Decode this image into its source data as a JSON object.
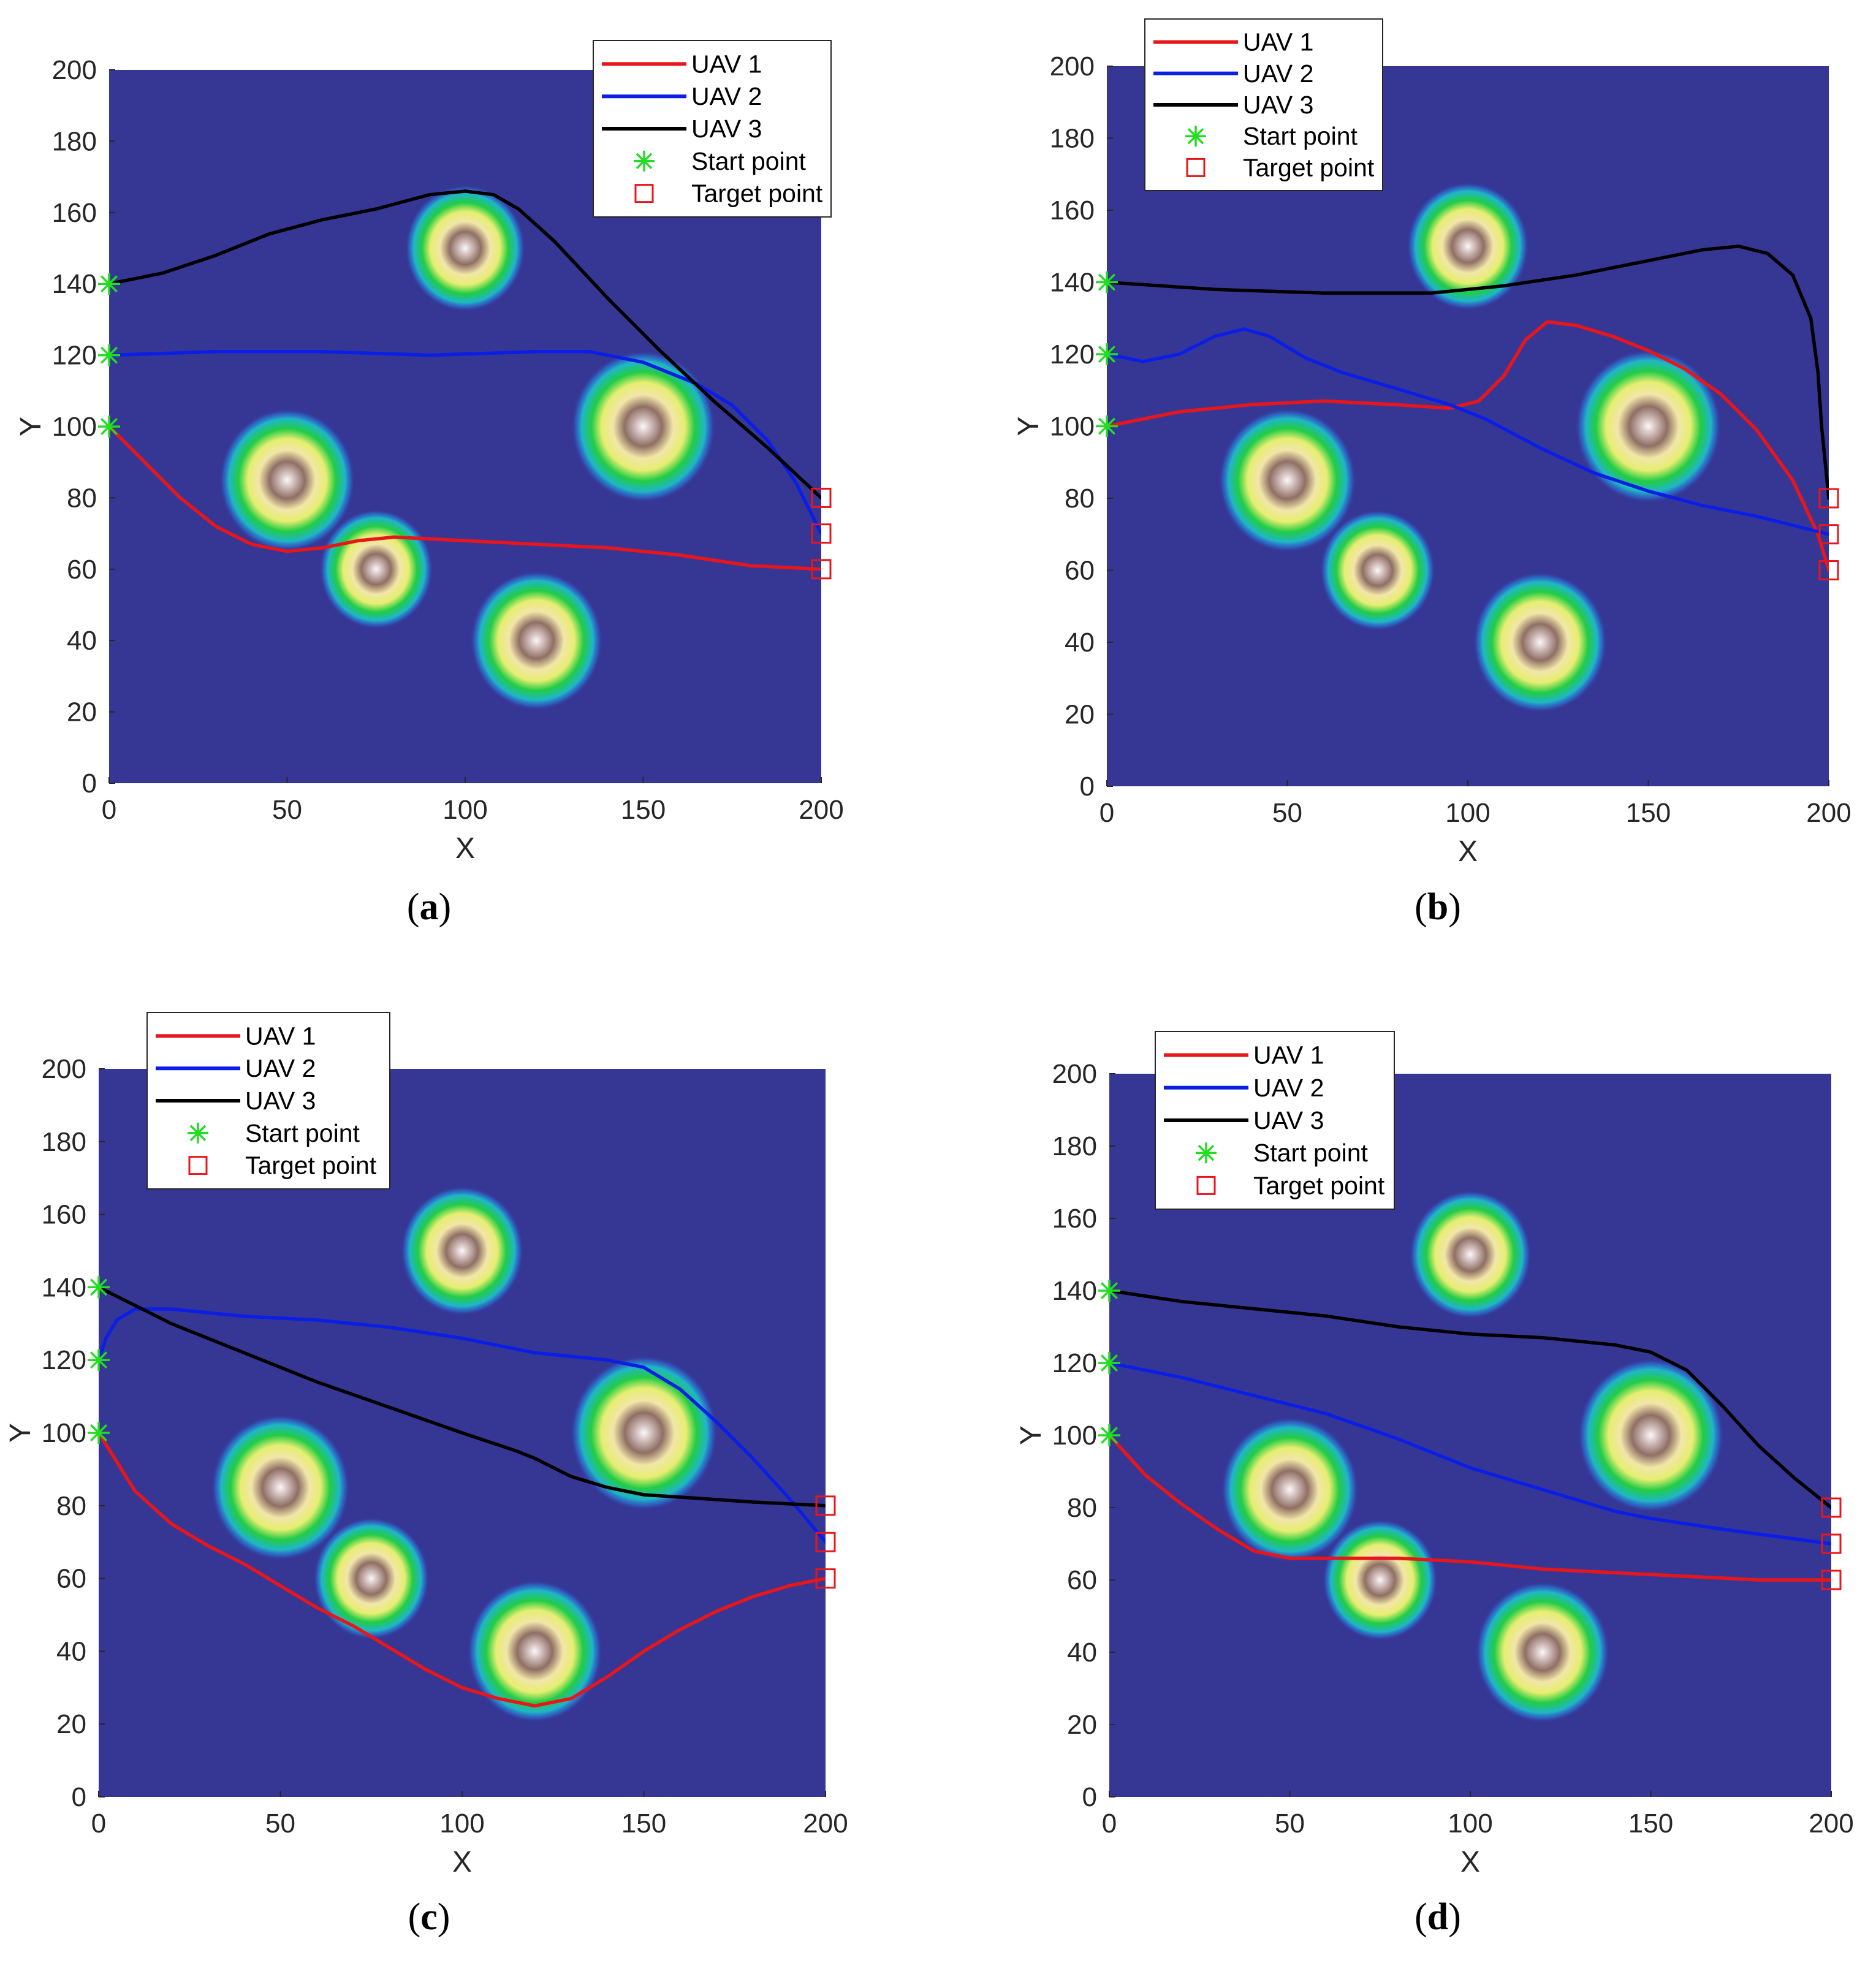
{
  "chart_data": [
    {
      "panel": "a",
      "type": "line",
      "caption_letter": "a",
      "xlabel": "X",
      "ylabel": "Y",
      "xlim": [
        0,
        200
      ],
      "ylim": [
        0,
        200
      ],
      "xticks": [
        0,
        50,
        100,
        150,
        200
      ],
      "yticks": [
        0,
        20,
        40,
        60,
        80,
        100,
        120,
        140,
        160,
        180,
        200
      ],
      "legend_position": "top-right",
      "series": [
        {
          "name": "UAV 1",
          "color": "#e8161b",
          "points": [
            [
              0,
              100
            ],
            [
              10,
              90
            ],
            [
              20,
              80
            ],
            [
              30,
              72
            ],
            [
              40,
              67
            ],
            [
              50,
              65
            ],
            [
              60,
              66
            ],
            [
              70,
              68
            ],
            [
              80,
              69
            ],
            [
              100,
              68
            ],
            [
              120,
              67
            ],
            [
              140,
              66
            ],
            [
              160,
              64
            ],
            [
              180,
              61
            ],
            [
              200,
              60
            ]
          ]
        },
        {
          "name": "UAV 2",
          "color": "#0a1ee6",
          "points": [
            [
              0,
              120
            ],
            [
              30,
              121
            ],
            [
              60,
              121
            ],
            [
              90,
              120
            ],
            [
              120,
              121
            ],
            [
              135,
              121
            ],
            [
              150,
              118
            ],
            [
              165,
              112
            ],
            [
              175,
              106
            ],
            [
              185,
              96
            ],
            [
              193,
              84
            ],
            [
              200,
              70
            ]
          ]
        },
        {
          "name": "UAV 3",
          "color": "#000000",
          "points": [
            [
              0,
              140
            ],
            [
              15,
              143
            ],
            [
              30,
              148
            ],
            [
              45,
              154
            ],
            [
              60,
              158
            ],
            [
              75,
              161
            ],
            [
              90,
              165
            ],
            [
              100,
              166
            ],
            [
              108,
              165
            ],
            [
              115,
              161
            ],
            [
              125,
              152
            ],
            [
              140,
              136
            ],
            [
              155,
              121
            ],
            [
              170,
              107
            ],
            [
              185,
              94
            ],
            [
              200,
              80
            ]
          ]
        }
      ],
      "start_points": [
        [
          0,
          100
        ],
        [
          0,
          120
        ],
        [
          0,
          140
        ]
      ],
      "target_points": [
        [
          200,
          60
        ],
        [
          200,
          70
        ],
        [
          200,
          80
        ]
      ],
      "threats": [
        [
          50,
          85,
          1.0
        ],
        [
          100,
          150,
          0.55
        ],
        [
          150,
          100,
          1.25
        ],
        [
          120,
          40,
          0.9
        ],
        [
          75,
          60,
          0.35
        ]
      ]
    },
    {
      "panel": "b",
      "type": "line",
      "caption_letter": "b",
      "xlabel": "X",
      "ylabel": "Y",
      "xlim": [
        0,
        200
      ],
      "ylim": [
        0,
        200
      ],
      "xticks": [
        0,
        50,
        100,
        150,
        200
      ],
      "yticks": [
        0,
        20,
        40,
        60,
        80,
        100,
        120,
        140,
        160,
        180,
        200
      ],
      "legend_position": "top-left",
      "series": [
        {
          "name": "UAV 1",
          "color": "#e8161b",
          "points": [
            [
              0,
              100
            ],
            [
              20,
              104
            ],
            [
              40,
              106
            ],
            [
              60,
              107
            ],
            [
              80,
              106
            ],
            [
              95,
              105
            ],
            [
              103,
              107
            ],
            [
              110,
              114
            ],
            [
              116,
              124
            ],
            [
              122,
              129
            ],
            [
              130,
              128
            ],
            [
              140,
              125
            ],
            [
              150,
              121
            ],
            [
              160,
              116
            ],
            [
              170,
              109
            ],
            [
              180,
              99
            ],
            [
              190,
              85
            ],
            [
              197,
              70
            ],
            [
              200,
              60
            ]
          ]
        },
        {
          "name": "UAV 2",
          "color": "#0a1ee6",
          "points": [
            [
              0,
              120
            ],
            [
              10,
              118
            ],
            [
              20,
              120
            ],
            [
              30,
              125
            ],
            [
              38,
              127
            ],
            [
              45,
              125
            ],
            [
              55,
              119
            ],
            [
              65,
              115
            ],
            [
              75,
              112
            ],
            [
              85,
              109
            ],
            [
              95,
              106
            ],
            [
              105,
              102
            ],
            [
              120,
              94
            ],
            [
              135,
              87
            ],
            [
              150,
              82
            ],
            [
              165,
              78
            ],
            [
              180,
              75
            ],
            [
              200,
              70
            ]
          ]
        },
        {
          "name": "UAV 3",
          "color": "#000000",
          "points": [
            [
              0,
              140
            ],
            [
              30,
              138
            ],
            [
              60,
              137
            ],
            [
              90,
              137
            ],
            [
              110,
              139
            ],
            [
              130,
              142
            ],
            [
              150,
              146
            ],
            [
              165,
              149
            ],
            [
              175,
              150
            ],
            [
              183,
              148
            ],
            [
              190,
              142
            ],
            [
              195,
              130
            ],
            [
              197,
              115
            ],
            [
              198,
              100
            ],
            [
              199,
              90
            ],
            [
              200,
              80
            ]
          ]
        }
      ],
      "start_points": [
        [
          0,
          100
        ],
        [
          0,
          120
        ],
        [
          0,
          140
        ]
      ],
      "target_points": [
        [
          200,
          60
        ],
        [
          200,
          70
        ],
        [
          200,
          80
        ]
      ],
      "threats": [
        [
          50,
          85,
          1.0
        ],
        [
          100,
          150,
          0.55
        ],
        [
          150,
          100,
          1.25
        ],
        [
          120,
          40,
          0.9
        ],
        [
          75,
          60,
          0.35
        ]
      ]
    },
    {
      "panel": "c",
      "type": "line",
      "caption_letter": "c",
      "xlabel": "X",
      "ylabel": "Y",
      "xlim": [
        0,
        200
      ],
      "ylim": [
        0,
        200
      ],
      "xticks": [
        0,
        50,
        100,
        150,
        200
      ],
      "yticks": [
        0,
        20,
        40,
        60,
        80,
        100,
        120,
        140,
        160,
        180,
        200
      ],
      "legend_position": "top-left",
      "series": [
        {
          "name": "UAV 1",
          "color": "#e8161b",
          "points": [
            [
              0,
              100
            ],
            [
              5,
              92
            ],
            [
              10,
              84
            ],
            [
              20,
              75
            ],
            [
              30,
              69
            ],
            [
              40,
              64
            ],
            [
              50,
              58
            ],
            [
              60,
              52
            ],
            [
              70,
              47
            ],
            [
              80,
              41
            ],
            [
              90,
              35
            ],
            [
              100,
              30
            ],
            [
              110,
              27
            ],
            [
              120,
              25
            ],
            [
              130,
              27
            ],
            [
              140,
              33
            ],
            [
              150,
              40
            ],
            [
              160,
              46
            ],
            [
              170,
              51
            ],
            [
              180,
              55
            ],
            [
              190,
              58
            ],
            [
              200,
              60
            ]
          ]
        },
        {
          "name": "UAV 2",
          "color": "#0a1ee6",
          "points": [
            [
              0,
              120
            ],
            [
              2,
              126
            ],
            [
              5,
              131
            ],
            [
              10,
              134
            ],
            [
              20,
              134
            ],
            [
              40,
              132
            ],
            [
              60,
              131
            ],
            [
              80,
              129
            ],
            [
              100,
              126
            ],
            [
              120,
              122
            ],
            [
              140,
              120
            ],
            [
              150,
              118
            ],
            [
              160,
              112
            ],
            [
              170,
              103
            ],
            [
              180,
              93
            ],
            [
              190,
              82
            ],
            [
              200,
              70
            ]
          ]
        },
        {
          "name": "UAV 3",
          "color": "#000000",
          "points": [
            [
              0,
              140
            ],
            [
              10,
              135
            ],
            [
              20,
              130
            ],
            [
              40,
              122
            ],
            [
              60,
              114
            ],
            [
              80,
              107
            ],
            [
              100,
              100
            ],
            [
              115,
              95
            ],
            [
              120,
              93
            ],
            [
              130,
              88
            ],
            [
              140,
              85
            ],
            [
              150,
              83
            ],
            [
              165,
              82
            ],
            [
              180,
              81
            ],
            [
              200,
              80
            ]
          ]
        }
      ],
      "start_points": [
        [
          0,
          100
        ],
        [
          0,
          120
        ],
        [
          0,
          140
        ]
      ],
      "target_points": [
        [
          200,
          60
        ],
        [
          200,
          70
        ],
        [
          200,
          80
        ]
      ],
      "threats": [
        [
          50,
          85,
          1.0
        ],
        [
          100,
          150,
          0.55
        ],
        [
          150,
          100,
          1.25
        ],
        [
          120,
          40,
          0.9
        ],
        [
          75,
          60,
          0.35
        ]
      ]
    },
    {
      "panel": "d",
      "type": "line",
      "caption_letter": "d",
      "xlabel": "X",
      "ylabel": "Y",
      "xlim": [
        0,
        200
      ],
      "ylim": [
        0,
        200
      ],
      "xticks": [
        0,
        50,
        100,
        150,
        200
      ],
      "yticks": [
        0,
        20,
        40,
        60,
        80,
        100,
        120,
        140,
        160,
        180,
        200
      ],
      "legend_position": "top-left",
      "series": [
        {
          "name": "UAV 1",
          "color": "#e8161b",
          "points": [
            [
              0,
              100
            ],
            [
              10,
              89
            ],
            [
              20,
              81
            ],
            [
              30,
              74
            ],
            [
              40,
              68
            ],
            [
              50,
              66
            ],
            [
              60,
              66
            ],
            [
              70,
              66
            ],
            [
              80,
              66
            ],
            [
              100,
              65
            ],
            [
              120,
              63
            ],
            [
              140,
              62
            ],
            [
              160,
              61
            ],
            [
              180,
              60
            ],
            [
              200,
              60
            ]
          ]
        },
        {
          "name": "UAV 2",
          "color": "#0a1ee6",
          "points": [
            [
              0,
              120
            ],
            [
              20,
              116
            ],
            [
              40,
              111
            ],
            [
              60,
              106
            ],
            [
              80,
              99
            ],
            [
              100,
              91
            ],
            [
              120,
              85
            ],
            [
              140,
              79
            ],
            [
              150,
              77
            ],
            [
              170,
              74
            ],
            [
              200,
              70
            ]
          ]
        },
        {
          "name": "UAV 3",
          "color": "#000000",
          "points": [
            [
              0,
              140
            ],
            [
              20,
              137
            ],
            [
              40,
              135
            ],
            [
              60,
              133
            ],
            [
              80,
              130
            ],
            [
              100,
              128
            ],
            [
              120,
              127
            ],
            [
              140,
              125
            ],
            [
              150,
              123
            ],
            [
              160,
              118
            ],
            [
              170,
              108
            ],
            [
              180,
              97
            ],
            [
              190,
              88
            ],
            [
              200,
              80
            ]
          ]
        }
      ],
      "start_points": [
        [
          0,
          100
        ],
        [
          0,
          120
        ],
        [
          0,
          140
        ]
      ],
      "target_points": [
        [
          200,
          60
        ],
        [
          200,
          70
        ],
        [
          200,
          80
        ]
      ],
      "threats": [
        [
          50,
          85,
          1.0
        ],
        [
          100,
          150,
          0.55
        ],
        [
          150,
          100,
          1.25
        ],
        [
          120,
          40,
          0.9
        ],
        [
          75,
          60,
          0.35
        ]
      ]
    }
  ],
  "legend_labels": {
    "start": "Start point",
    "target": "Target point"
  },
  "colors": {
    "background": "#363795",
    "start_marker": "#22dd22",
    "target_marker": "#e8161b"
  },
  "caption_parens": [
    "(",
    ")"
  ]
}
